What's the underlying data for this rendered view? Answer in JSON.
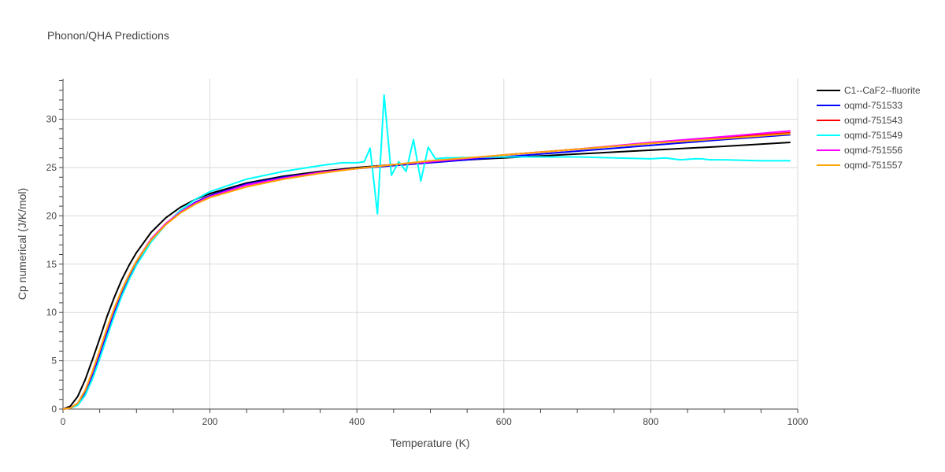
{
  "chart_data": {
    "type": "line",
    "title": "Phonon/QHA Predictions",
    "xlabel": "Temperature (K)",
    "ylabel": "Cp numerical (J/K/mol)",
    "xlim": [
      0,
      1000
    ],
    "ylim": [
      0,
      34.2
    ],
    "xticks": [
      0,
      200,
      400,
      600,
      800,
      1000
    ],
    "yticks": [
      0,
      5,
      10,
      15,
      20,
      25,
      30
    ],
    "grid": true,
    "legend_position": "right",
    "series": [
      {
        "name": "C1--CaF2--fluorite",
        "color": "#000000",
        "x": [
          0,
          10,
          20,
          30,
          40,
          50,
          60,
          70,
          80,
          90,
          100,
          120,
          140,
          160,
          180,
          200,
          250,
          300,
          350,
          400,
          450,
          500,
          600,
          700,
          800,
          900,
          990
        ],
        "y": [
          0,
          0.3,
          1.3,
          3.0,
          5.1,
          7.3,
          9.6,
          11.6,
          13.4,
          14.9,
          16.2,
          18.3,
          19.8,
          20.9,
          21.7,
          22.3,
          23.4,
          24.1,
          24.6,
          25.0,
          25.3,
          25.6,
          26.0,
          26.4,
          26.8,
          27.2,
          27.6
        ]
      },
      {
        "name": "oqmd-751533",
        "color": "#0000ff",
        "x": [
          0,
          10,
          20,
          30,
          40,
          50,
          60,
          70,
          80,
          90,
          100,
          120,
          140,
          160,
          180,
          200,
          250,
          300,
          350,
          400,
          450,
          500,
          600,
          700,
          800,
          900,
          990
        ],
        "y": [
          0,
          0.1,
          0.5,
          1.7,
          3.5,
          5.7,
          7.9,
          10.0,
          11.9,
          13.6,
          15.0,
          17.4,
          19.1,
          20.4,
          21.4,
          22.1,
          23.3,
          24.0,
          24.5,
          24.9,
          25.2,
          25.5,
          26.1,
          26.7,
          27.3,
          27.9,
          28.4
        ]
      },
      {
        "name": "oqmd-751543",
        "color": "#ff0000",
        "x": [
          0,
          10,
          20,
          30,
          40,
          50,
          60,
          70,
          80,
          90,
          100,
          120,
          140,
          160,
          180,
          200,
          250,
          300,
          350,
          400,
          450,
          500,
          600,
          700,
          800,
          900,
          990
        ],
        "y": [
          0,
          0.1,
          0.6,
          1.9,
          3.8,
          6.0,
          8.3,
          10.4,
          12.3,
          13.9,
          15.3,
          17.6,
          19.2,
          20.4,
          21.3,
          22.0,
          23.2,
          23.9,
          24.5,
          24.9,
          25.3,
          25.6,
          26.3,
          26.9,
          27.5,
          28.1,
          28.6
        ]
      },
      {
        "name": "oqmd-751549",
        "color": "#00ffff",
        "x": [
          0,
          10,
          20,
          30,
          40,
          50,
          60,
          70,
          80,
          90,
          100,
          120,
          140,
          160,
          180,
          200,
          250,
          300,
          350,
          380,
          400,
          410,
          418,
          428,
          437,
          447,
          457,
          467,
          477,
          487,
          497,
          507,
          520,
          600,
          700,
          800,
          820,
          840,
          860,
          870,
          880,
          900,
          950,
          990
        ],
        "y": [
          0,
          0.1,
          0.4,
          1.4,
          3.1,
          5.2,
          7.5,
          9.7,
          11.7,
          13.4,
          14.9,
          17.3,
          19.1,
          20.6,
          21.7,
          22.5,
          23.8,
          24.6,
          25.2,
          25.5,
          25.5,
          25.6,
          27.0,
          20.2,
          32.5,
          24.2,
          25.6,
          24.6,
          27.9,
          23.6,
          27.1,
          25.9,
          26.0,
          26.1,
          26.1,
          25.9,
          26.0,
          25.8,
          25.9,
          25.9,
          25.8,
          25.8,
          25.7,
          25.7
        ]
      },
      {
        "name": "oqmd-751556",
        "color": "#ff00ff",
        "x": [
          0,
          10,
          20,
          30,
          40,
          50,
          60,
          70,
          80,
          90,
          100,
          120,
          140,
          160,
          180,
          200,
          250,
          300,
          350,
          400,
          450,
          500,
          600,
          700,
          800,
          900,
          990
        ],
        "y": [
          0,
          0.1,
          0.6,
          1.9,
          3.8,
          6.0,
          8.3,
          10.4,
          12.3,
          13.9,
          15.3,
          17.6,
          19.2,
          20.4,
          21.3,
          22.0,
          23.2,
          23.9,
          24.5,
          24.9,
          25.3,
          25.6,
          26.3,
          26.9,
          27.6,
          28.2,
          28.8
        ]
      },
      {
        "name": "oqmd-751557",
        "color": "#ffa500",
        "x": [
          0,
          10,
          20,
          30,
          40,
          50,
          60,
          70,
          80,
          90,
          100,
          120,
          140,
          160,
          180,
          200,
          250,
          300,
          350,
          400,
          450,
          500,
          600,
          700,
          800,
          900,
          990
        ],
        "y": [
          0,
          0.1,
          0.6,
          1.9,
          3.9,
          6.1,
          8.4,
          10.5,
          12.3,
          13.9,
          15.3,
          17.5,
          19.1,
          20.3,
          21.2,
          21.9,
          23.0,
          23.8,
          24.4,
          24.9,
          25.3,
          25.7,
          26.3,
          26.9,
          27.5,
          28.0,
          28.5
        ]
      }
    ]
  }
}
